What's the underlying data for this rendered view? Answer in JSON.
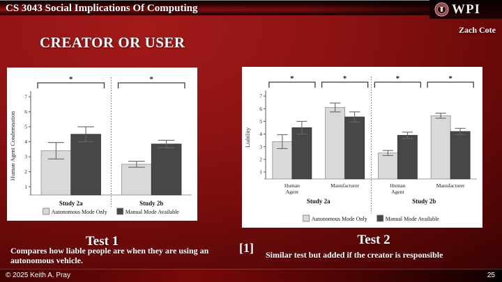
{
  "header": {
    "course_title": "CS 3043 Social Implications Of Computing",
    "logo_text": "WPI",
    "author": "Zach Cote"
  },
  "slide": {
    "title": "CREATOR OR USER"
  },
  "tests": {
    "test1": {
      "heading": "Test 1",
      "description": "Compares how liable people are when they are using an autonomous vehicle."
    },
    "citation": "[1]",
    "test2": {
      "heading": "Test 2",
      "description": "Similar test but added if the creator is responsible"
    }
  },
  "footer": {
    "copyright": "© 2025 Keith A. Pray",
    "page_number": "25"
  },
  "colors": {
    "slide_red": "#8c1212",
    "bar_light": "#d9d9d9",
    "bar_dark": "#474747",
    "panel_bg": "#ffffff",
    "seal_red": "#8e2430"
  },
  "chart_data": [
    {
      "type": "bar",
      "title": "Test 1 — Human Agent Condemnation",
      "xlabel": "",
      "ylabel": "Human Agent Condemnation",
      "ylim": [
        1,
        7
      ],
      "yticks": [
        1,
        2,
        3,
        4,
        5,
        6,
        7
      ],
      "grid": false,
      "legend_position": "bottom",
      "series_names": [
        "Autonomous Mode Only",
        "Manual Mode Available"
      ],
      "series_colors": [
        "#d9d9d9",
        "#474747"
      ],
      "panels": [
        {
          "panel_label": "Study 2a",
          "clusters": [
            {
              "label": "",
              "values": [
                3.4,
                4.5
              ],
              "errors": [
                0.55,
                0.5
              ],
              "significance": "*"
            }
          ]
        },
        {
          "panel_label": "Study 2b",
          "clusters": [
            {
              "label": "",
              "values": [
                2.5,
                3.85
              ],
              "errors": [
                0.2,
                0.25
              ],
              "significance": "*"
            }
          ]
        }
      ]
    },
    {
      "type": "bar",
      "title": "Test 2 — Liability",
      "xlabel": "",
      "ylabel": "Liability",
      "ylim": [
        1,
        7
      ],
      "yticks": [
        1,
        2,
        3,
        4,
        5,
        6,
        7
      ],
      "grid": false,
      "legend_position": "bottom",
      "series_names": [
        "Autonomous Mode Only",
        "Manual Mode Available"
      ],
      "series_colors": [
        "#d9d9d9",
        "#474747"
      ],
      "panels": [
        {
          "panel_label": "Study 2a",
          "clusters": [
            {
              "label": "Human Agent",
              "values": [
                3.4,
                4.5
              ],
              "errors": [
                0.55,
                0.5
              ],
              "significance": "*"
            },
            {
              "label": "Manufacturer",
              "values": [
                6.1,
                5.35
              ],
              "errors": [
                0.35,
                0.4
              ],
              "significance": "*"
            }
          ]
        },
        {
          "panel_label": "Study 2b",
          "clusters": [
            {
              "label": "Human Agent",
              "values": [
                2.5,
                3.9
              ],
              "errors": [
                0.2,
                0.25
              ],
              "significance": "*"
            },
            {
              "label": "Manufacturer",
              "values": [
                5.45,
                4.2
              ],
              "errors": [
                0.2,
                0.25
              ],
              "significance": "*"
            }
          ]
        }
      ]
    }
  ]
}
